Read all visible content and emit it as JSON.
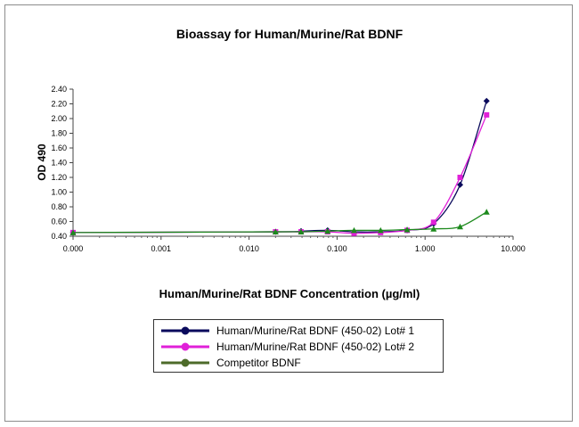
{
  "chart_data": {
    "type": "line",
    "title": "Bioassay for Human/Murine/Rat BDNF",
    "xlabel": "Human/Murine/Rat BDNF Concentration (µg/ml)",
    "ylabel": "OD 490",
    "xscale": "log",
    "xlim": [
      0.0001,
      10
    ],
    "ylim": [
      0.4,
      2.4
    ],
    "x_tick_labels": [
      "0.000",
      "0.001",
      "0.010",
      "0.100",
      "1.000",
      "10.000"
    ],
    "x_tick_values": [
      0.0001,
      0.001,
      0.01,
      0.1,
      1,
      10
    ],
    "y_ticks": [
      0.4,
      0.6,
      0.8,
      1.0,
      1.2,
      1.4,
      1.6,
      1.8,
      2.0,
      2.2,
      2.4
    ],
    "y_tick_labels": [
      "0.40",
      "0.60",
      "0.80",
      "1.00",
      "1.20",
      "1.40",
      "1.60",
      "1.80",
      "2.00",
      "2.20",
      "2.40"
    ],
    "grid": false,
    "legend_position": "bottom",
    "series": [
      {
        "name": "Human/Murine/Rat BDNF (450-02) Lot# 1",
        "color": "#0a0a5c",
        "marker": "diamond",
        "x": [
          0.0001,
          0.02,
          0.039,
          0.078,
          0.156,
          0.3125,
          0.625,
          1.25,
          2.5,
          5.0
        ],
        "y": [
          0.45,
          0.46,
          0.47,
          0.48,
          0.46,
          0.46,
          0.48,
          0.57,
          1.1,
          2.24
        ]
      },
      {
        "name": "Human/Murine/Rat BDNF (450-02) Lot# 2",
        "color": "#e020d8",
        "marker": "square",
        "x": [
          0.0001,
          0.02,
          0.039,
          0.078,
          0.156,
          0.3125,
          0.625,
          1.25,
          2.5,
          5.0
        ],
        "y": [
          0.45,
          0.46,
          0.46,
          0.46,
          0.44,
          0.45,
          0.48,
          0.59,
          1.2,
          2.05
        ]
      },
      {
        "name": "Competitor BDNF",
        "color": "#1d8a1d",
        "legend_color": "#4d6b2a",
        "marker": "triangle",
        "x": [
          0.0001,
          0.02,
          0.039,
          0.078,
          0.156,
          0.3125,
          0.625,
          1.25,
          2.5,
          5.0
        ],
        "y": [
          0.45,
          0.46,
          0.46,
          0.47,
          0.48,
          0.48,
          0.49,
          0.5,
          0.53,
          0.73
        ]
      }
    ]
  }
}
